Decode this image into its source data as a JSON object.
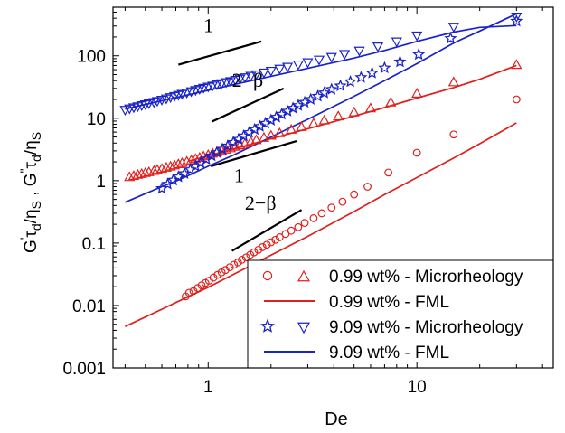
{
  "chart_data": {
    "type": "scatter",
    "xscale": "log",
    "yscale": "log",
    "xlim": [
      0.35,
      45
    ],
    "ylim": [
      0.001,
      600
    ],
    "xlabel": "De",
    "ylabel_parts": [
      "G",
      "'",
      "τ",
      "d",
      "/η",
      "S",
      " , G",
      "\"",
      "τ",
      "d",
      "/η",
      "S"
    ],
    "x_ticks": [
      {
        "value": 1,
        "label": "1"
      },
      {
        "value": 10,
        "label": "10"
      }
    ],
    "y_ticks": [
      {
        "value": 0.001,
        "label": "0.001"
      },
      {
        "value": 0.01,
        "label": "0.01"
      },
      {
        "value": 0.1,
        "label": "0.1"
      },
      {
        "value": 1,
        "label": "1"
      },
      {
        "value": 10,
        "label": "10"
      },
      {
        "value": 100,
        "label": "100"
      }
    ],
    "colors": {
      "red": "#e0201c",
      "blue": "#1a23c8"
    },
    "series": [
      {
        "name": "0.99 wt% - Microrheology",
        "kind": "points",
        "marker": "circle",
        "color": "#e0201c",
        "x": [
          0.78,
          0.81,
          0.85,
          0.89,
          0.93,
          0.97,
          1.01,
          1.06,
          1.11,
          1.16,
          1.21,
          1.27,
          1.33,
          1.39,
          1.45,
          1.52,
          1.59,
          1.66,
          1.74,
          1.82,
          1.91,
          2.0,
          2.1,
          2.2,
          2.35,
          2.5,
          2.7,
          2.9,
          3.2,
          3.5,
          3.9,
          4.4,
          5.0,
          5.8,
          7.3,
          10.0,
          15.0,
          30.0
        ],
        "y": [
          0.014,
          0.016,
          0.017,
          0.019,
          0.021,
          0.023,
          0.025,
          0.028,
          0.031,
          0.034,
          0.037,
          0.041,
          0.045,
          0.049,
          0.054,
          0.059,
          0.065,
          0.071,
          0.078,
          0.086,
          0.094,
          0.103,
          0.113,
          0.124,
          0.14,
          0.158,
          0.18,
          0.21,
          0.25,
          0.3,
          0.37,
          0.46,
          0.6,
          0.8,
          1.35,
          2.8,
          5.5,
          20.0
        ]
      },
      {
        "name": "0.99 wt% - Microrheology",
        "kind": "points",
        "marker": "triangle-up",
        "color": "#e0201c",
        "x": [
          0.42,
          0.44,
          0.46,
          0.48,
          0.5,
          0.52,
          0.55,
          0.57,
          0.6,
          0.63,
          0.66,
          0.69,
          0.72,
          0.75,
          0.79,
          0.83,
          0.87,
          0.91,
          0.95,
          1.0,
          1.05,
          1.1,
          1.16,
          1.22,
          1.28,
          1.35,
          1.42,
          1.5,
          1.6,
          1.7,
          1.85,
          2.0,
          2.2,
          2.5,
          2.8,
          3.2,
          3.6,
          4.2,
          5.0,
          6.0,
          7.5,
          10.0,
          15.0,
          30.0
        ],
        "y": [
          1.15,
          1.2,
          1.25,
          1.29,
          1.34,
          1.38,
          1.44,
          1.5,
          1.56,
          1.63,
          1.7,
          1.77,
          1.85,
          1.93,
          2.03,
          2.13,
          2.24,
          2.35,
          2.47,
          2.6,
          2.73,
          2.86,
          3.02,
          3.17,
          3.33,
          3.52,
          3.7,
          3.93,
          4.2,
          4.5,
          4.9,
          5.3,
          5.8,
          6.6,
          7.3,
          8.3,
          9.3,
          10.8,
          12.5,
          14.5,
          18.0,
          25.0,
          38.0,
          72.0
        ]
      },
      {
        "name": "9.09 wt% - Microrheology",
        "kind": "points",
        "marker": "star",
        "color": "#1a23c8",
        "x": [
          0.6,
          0.64,
          0.68,
          0.72,
          0.77,
          0.82,
          0.87,
          0.92,
          0.98,
          1.04,
          1.1,
          1.17,
          1.24,
          1.32,
          1.4,
          1.48,
          1.57,
          1.67,
          1.77,
          1.88,
          2.0,
          2.12,
          2.25,
          2.4,
          2.55,
          2.7,
          2.9,
          3.1,
          3.35,
          3.6,
          3.9,
          4.3,
          4.8,
          5.4,
          6.1,
          7.0,
          8.3,
          10.2,
          14.5,
          30.0
        ],
        "y": [
          0.75,
          0.88,
          1.02,
          1.15,
          1.3,
          1.5,
          1.7,
          1.92,
          2.2,
          2.5,
          2.82,
          3.2,
          3.6,
          4.1,
          4.6,
          5.2,
          5.9,
          6.6,
          7.4,
          8.3,
          9.3,
          10.4,
          11.6,
          13.0,
          14.5,
          16.0,
          18.0,
          20.0,
          22.5,
          25.5,
          29.0,
          33.0,
          38.5,
          45.0,
          53.0,
          64.0,
          80.0,
          105.0,
          190.0,
          360.0
        ]
      },
      {
        "name": "9.09 wt% - Microrheology",
        "kind": "points",
        "marker": "triangle-down",
        "color": "#1a23c8",
        "x": [
          0.4,
          0.42,
          0.44,
          0.46,
          0.48,
          0.5,
          0.52,
          0.55,
          0.57,
          0.6,
          0.63,
          0.66,
          0.69,
          0.72,
          0.75,
          0.79,
          0.83,
          0.87,
          0.91,
          0.95,
          1.0,
          1.05,
          1.1,
          1.16,
          1.22,
          1.28,
          1.35,
          1.42,
          1.5,
          1.6,
          1.7,
          1.85,
          2.0,
          2.2,
          2.4,
          2.7,
          3.0,
          3.4,
          3.9,
          4.5,
          5.3,
          6.5,
          8.0,
          10.0,
          15.0,
          30.0
        ],
        "y": [
          13.5,
          14.2,
          14.8,
          15.4,
          16.0,
          16.6,
          17.2,
          18.0,
          18.7,
          19.6,
          20.5,
          21.5,
          22.5,
          23.4,
          24.3,
          25.5,
          26.7,
          28.0,
          29.2,
          30.4,
          31.7,
          33.0,
          34.5,
          36.0,
          37.5,
          39.0,
          40.8,
          42.6,
          44.8,
          47.3,
          50.0,
          53.5,
          57.0,
          61.5,
          66.0,
          72.0,
          78.0,
          86.0,
          95.0,
          106.0,
          120.0,
          140.0,
          168.0,
          210.0,
          290.0,
          420.0
        ]
      },
      {
        "name": "0.99 wt% - FML",
        "kind": "line",
        "color": "#e0201c",
        "x": [
          0.4,
          0.6,
          0.8,
          1.0,
          1.5,
          2.0,
          3.0,
          5.0,
          7.0,
          10.0,
          15.0,
          20.0,
          30.0
        ],
        "y": [
          0.0046,
          0.0087,
          0.0138,
          0.0196,
          0.039,
          0.064,
          0.128,
          0.32,
          0.6,
          1.12,
          2.3,
          3.9,
          8.4
        ],
        "note": "lower red fit"
      },
      {
        "name": "0.99 wt% - FML",
        "kind": "line",
        "color": "#e0201c",
        "x": [
          0.8,
          1.0,
          1.5,
          2.0,
          3.0,
          5.0,
          7.0,
          10.0,
          15.0,
          20.0,
          30.0
        ],
        "y": [
          2.05,
          2.5,
          3.6,
          4.7,
          6.8,
          10.8,
          14.8,
          21.0,
          31.0,
          42.0,
          70.0
        ],
        "note": "upper red fit"
      },
      {
        "name": "9.09 wt% - FML",
        "kind": "line",
        "color": "#1a23c8",
        "x": [
          0.4,
          0.5,
          0.6,
          0.7,
          0.8,
          1.0,
          1.3,
          1.6,
          2.0,
          2.5,
          3.0,
          4.0,
          5.0,
          7.0,
          10.0,
          15.0,
          20.0,
          30.0
        ],
        "y": [
          0.45,
          0.62,
          0.8,
          0.98,
          1.2,
          1.7,
          2.5,
          3.5,
          5.0,
          7.2,
          9.6,
          15.5,
          22.5,
          40.0,
          75.0,
          160.0,
          250.0,
          470.0
        ],
        "note": "lower blue fit"
      },
      {
        "name": "9.09 wt% - FML",
        "kind": "line",
        "color": "#1a23c8",
        "x": [
          0.4,
          0.5,
          0.7,
          1.0,
          1.5,
          2.0,
          3.0,
          4.0,
          5.0,
          7.0,
          10.0,
          15.0,
          20.0,
          30.0
        ],
        "y": [
          14.0,
          16.6,
          21.4,
          28.0,
          38.0,
          47.0,
          63.0,
          78.0,
          92.0,
          122.0,
          170.0,
          240.0,
          285.0,
          305.0
        ],
        "note": "upper blue fit"
      }
    ],
    "annotations": [
      {
        "kind": "slope-line",
        "x": [
          0.72,
          1.8
        ],
        "y": [
          72,
          170
        ]
      },
      {
        "kind": "slope-label",
        "text": "1",
        "x": 0.95,
        "y": 240
      },
      {
        "kind": "slope-line",
        "x": [
          1.04,
          2.3
        ],
        "y": [
          8.8,
          30
        ]
      },
      {
        "kind": "slope-label",
        "text": "2−β",
        "x": 1.3,
        "y": 32
      },
      {
        "kind": "slope-line",
        "x": [
          1.03,
          2.65
        ],
        "y": [
          1.7,
          4.3
        ]
      },
      {
        "kind": "slope-label",
        "text": "1",
        "x": 1.33,
        "y": 0.95
      },
      {
        "kind": "slope-line",
        "x": [
          1.3,
          2.8
        ],
        "y": [
          0.075,
          0.34
        ]
      },
      {
        "kind": "slope-label",
        "text": "2−β",
        "x": 1.5,
        "y": 0.34
      }
    ],
    "legend": {
      "placement": "bottom-right",
      "entries": [
        {
          "label": "0.99 wt% - Microrheology",
          "markers": [
            "circle",
            "triangle-up"
          ],
          "color": "#e0201c"
        },
        {
          "label": "0.99 wt% - FML",
          "markers": [
            "line"
          ],
          "color": "#e0201c"
        },
        {
          "label": "9.09 wt% - Microrheology",
          "markers": [
            "star",
            "triangle-down"
          ],
          "color": "#1a23c8"
        },
        {
          "label": "9.09 wt% - FML",
          "markers": [
            "line"
          ],
          "color": "#1a23c8"
        }
      ]
    }
  }
}
